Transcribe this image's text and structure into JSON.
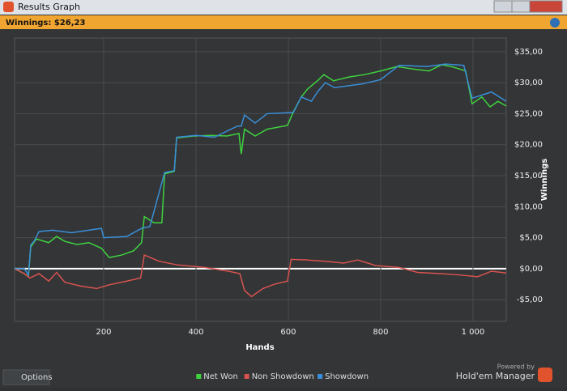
{
  "window": {
    "title": "Results Graph",
    "summary": "Winnings: $26,23",
    "options": "Options",
    "powered_by": "Powered by",
    "brand": "Hold'em Manager"
  },
  "chart_data": {
    "type": "line",
    "xlabel": "Hands",
    "ylabel": "Winnings",
    "xlim": [
      7,
      1072
    ],
    "ylim": [
      -8.5,
      37.2
    ],
    "xticks": [
      200,
      400,
      600,
      800,
      {
        "value": 1000,
        "label": "1 000"
      }
    ],
    "yticks": [
      {
        "value": -5,
        "label": "-$5,00"
      },
      {
        "value": 0,
        "label": "$0,00"
      },
      {
        "value": 5,
        "label": "$5,00"
      },
      {
        "value": 10,
        "label": "$10,00"
      },
      {
        "value": 15,
        "label": "$15,00"
      },
      {
        "value": 20,
        "label": "$20,00"
      },
      {
        "value": 25,
        "label": "$25,00"
      },
      {
        "value": 30,
        "label": "$30,00"
      },
      {
        "value": 35,
        "label": "$35,00"
      }
    ],
    "grid": true,
    "legend": "bottom",
    "series": [
      {
        "name": "Net Won",
        "color": "#3fd23f",
        "x": [
          7,
          28,
          37,
          42,
          54,
          81,
          98,
          116,
          142,
          168,
          195,
          212,
          239,
          265,
          282,
          288,
          309,
          326,
          332,
          353,
          358,
          396,
          432,
          467,
          493,
          498,
          505,
          528,
          554,
          598,
          611,
          628,
          642,
          663,
          677,
          698,
          730,
          765,
          800,
          835,
          870,
          905,
          932,
          958,
          984,
          998,
          1019,
          1037,
          1054,
          1072
        ],
        "values": [
          0,
          -0.8,
          -1.3,
          3.5,
          4.8,
          4.2,
          5.2,
          4.4,
          3.9,
          4.2,
          3.3,
          1.8,
          2.2,
          2.9,
          4.2,
          8.4,
          7.4,
          7.4,
          15.3,
          15.7,
          21.1,
          21.4,
          21.5,
          21.4,
          21.8,
          18.5,
          22.5,
          21.4,
          22.5,
          23.1,
          25.3,
          27.7,
          29.0,
          30.3,
          31.3,
          30.3,
          30.9,
          31.3,
          31.9,
          32.6,
          32.2,
          31.9,
          32.9,
          32.5,
          31.9,
          26.6,
          27.7,
          26.1,
          27.0,
          26.23
        ]
      },
      {
        "name": "Non Showdown",
        "color": "#d9534f",
        "x": [
          7,
          28,
          40,
          60,
          81,
          98,
          116,
          150,
          185,
          212,
          250,
          280,
          288,
          320,
          360,
          420,
          470,
          495,
          505,
          520,
          545,
          570,
          598,
          606,
          640,
          680,
          720,
          750,
          790,
          840,
          880,
          930,
          970,
          1010,
          1040,
          1072
        ],
        "values": [
          0,
          -0.8,
          -1.5,
          -0.8,
          -2.0,
          -0.6,
          -2.2,
          -2.8,
          -3.2,
          -2.6,
          -2.0,
          -1.5,
          2.2,
          1.2,
          0.6,
          0.2,
          -0.4,
          -0.8,
          -3.5,
          -4.5,
          -3.2,
          -2.5,
          -2.0,
          1.5,
          1.4,
          1.2,
          0.9,
          1.4,
          0.5,
          0.2,
          -0.6,
          -0.8,
          -1.0,
          -1.3,
          -0.4,
          -0.7
        ]
      },
      {
        "name": "Showdown",
        "color": "#3a8fd8",
        "x": [
          7,
          28,
          37,
          42,
          50,
          60,
          90,
          130,
          195,
          200,
          250,
          282,
          300,
          332,
          353,
          358,
          400,
          440,
          470,
          490,
          498,
          505,
          528,
          554,
          611,
          628,
          650,
          663,
          680,
          700,
          760,
          800,
          840,
          900,
          940,
          980,
          998,
          1040,
          1072
        ],
        "values": [
          0,
          0,
          -1.0,
          3.8,
          4.5,
          6.0,
          6.2,
          5.8,
          6.5,
          5.0,
          5.2,
          6.5,
          6.8,
          15.5,
          15.8,
          21.2,
          21.5,
          21.2,
          22.3,
          23.0,
          23.0,
          24.8,
          23.5,
          25.0,
          25.2,
          27.7,
          27.0,
          28.5,
          30.0,
          29.2,
          29.8,
          30.5,
          32.8,
          32.6,
          33.0,
          32.8,
          27.5,
          28.5,
          27.0
        ]
      }
    ]
  }
}
